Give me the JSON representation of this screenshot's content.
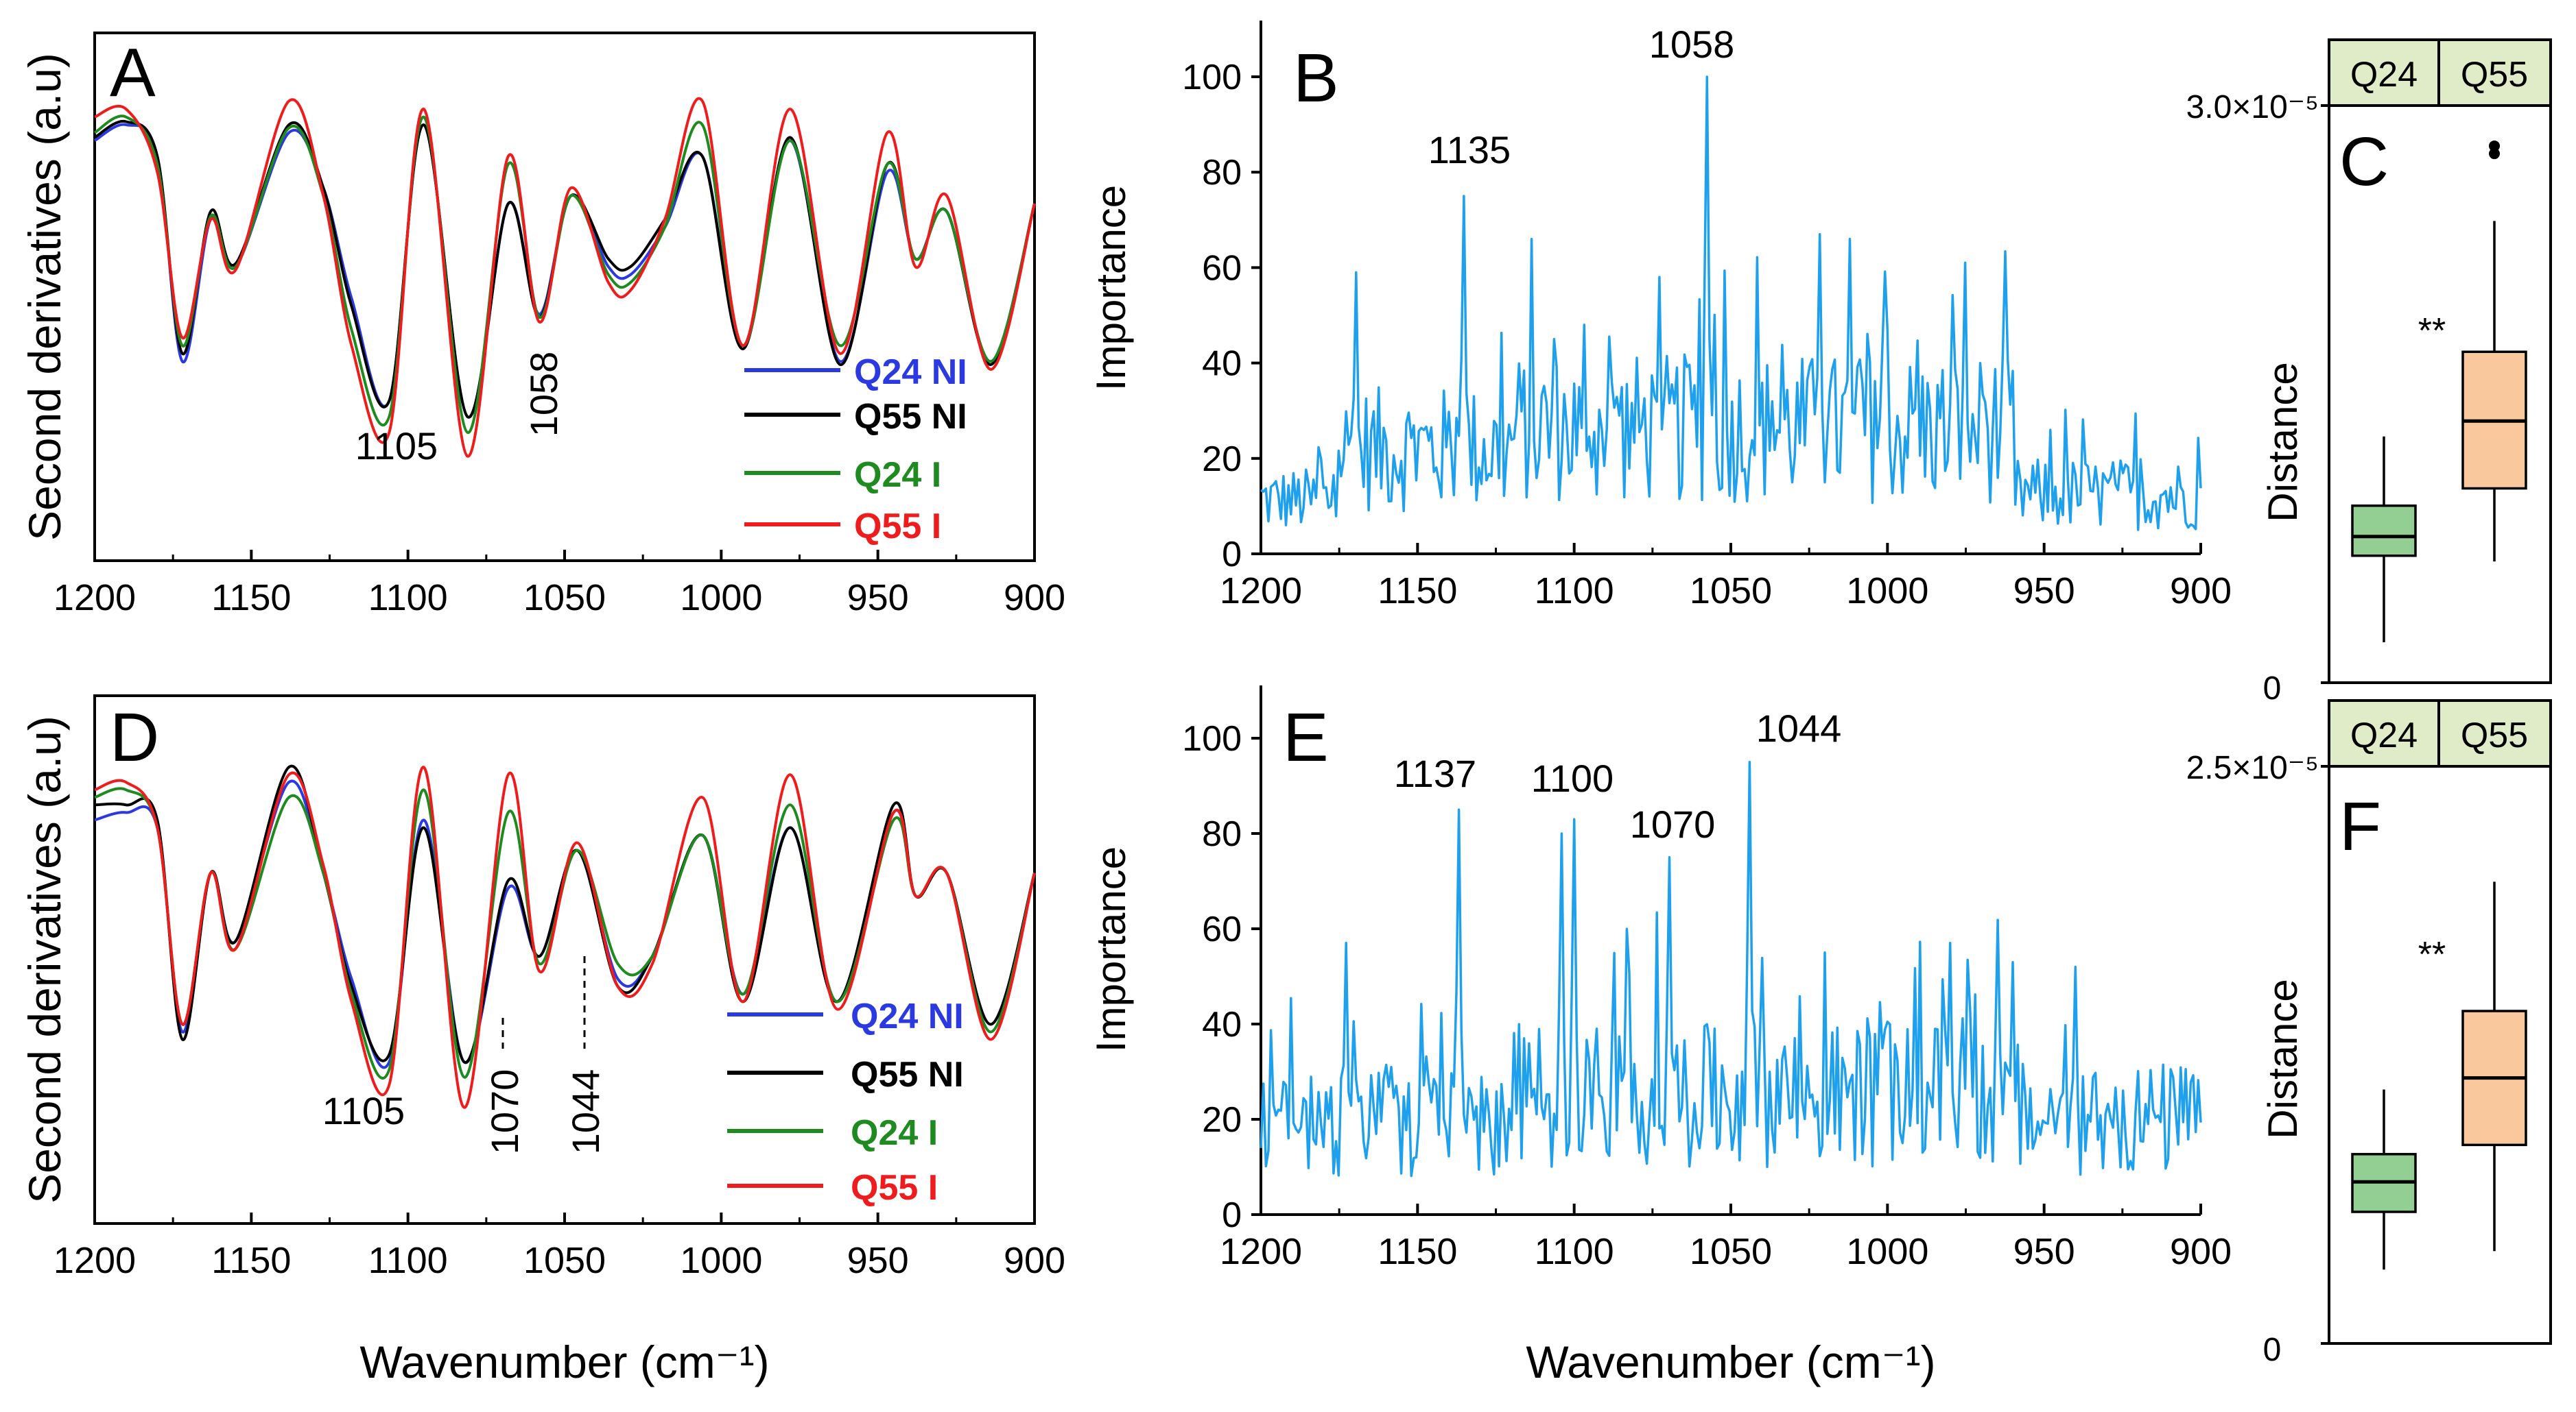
{
  "figure": {
    "panels": [
      {
        "id": "A",
        "letter": "A",
        "type": "line",
        "ylabel": "Second derivatives (a.u)",
        "xlabel": "",
        "xlim": [
          1200,
          900
        ],
        "xticks": [
          1200,
          1150,
          1100,
          1050,
          1000,
          950,
          900
        ],
        "legend": [
          {
            "label": "Q24 NI",
            "color": "#2b39e0"
          },
          {
            "label": "Q55 NI",
            "color": "#000000"
          },
          {
            "label": "Q24 I",
            "color": "#1f8a1f"
          },
          {
            "label": "Q55 I",
            "color": "#ee1c1c"
          }
        ],
        "annotations": [
          {
            "x": 1105,
            "text": "1105"
          },
          {
            "x": 1058,
            "text": "1058"
          }
        ]
      },
      {
        "id": "B",
        "letter": "B",
        "type": "line",
        "ylabel": "Importance",
        "xlabel": "",
        "xlim": [
          1200,
          900
        ],
        "ylim": [
          0,
          110
        ],
        "xticks": [
          1200,
          1150,
          1100,
          1050,
          1000,
          950,
          900
        ],
        "yticks": [
          0,
          20,
          40,
          60,
          80,
          100
        ],
        "series_color": "#1ea0ec",
        "annotations": [
          {
            "x": 1135,
            "y": 75,
            "text": "1135"
          },
          {
            "x": 1058,
            "y": 100,
            "text": "1058"
          }
        ]
      },
      {
        "id": "C",
        "letter": "C",
        "type": "box",
        "ylabel": "Distance",
        "ymax_label": "3.0×10⁻⁵",
        "ymin_label": "0",
        "ylim": [
          0,
          3e-05
        ],
        "categories": [
          "Q24",
          "Q55"
        ],
        "significance": "**",
        "boxes": [
          {
            "name": "Q24",
            "min": 2.1e-06,
            "q1": 6.6e-06,
            "median": 7.6e-06,
            "q3": 9.2e-06,
            "max": 1.28e-05,
            "outliers": [],
            "color": "#93cf93"
          },
          {
            "name": "Q55",
            "min": 6.3e-06,
            "q1": 1.01e-05,
            "median": 1.36e-05,
            "q3": 1.72e-05,
            "max": 2.4e-05,
            "outliers": [
              2.75e-05,
              2.79e-05
            ],
            "color": "#f9c89c"
          }
        ]
      },
      {
        "id": "D",
        "letter": "D",
        "type": "line",
        "ylabel": "Second derivatives (a.u)",
        "xlabel": "Wavenumber (cm⁻¹)",
        "xlim": [
          1200,
          900
        ],
        "xticks": [
          1200,
          1150,
          1100,
          1050,
          1000,
          950,
          900
        ],
        "legend": [
          {
            "label": "Q24 NI",
            "color": "#2b39e0"
          },
          {
            "label": "Q55 NI",
            "color": "#000000"
          },
          {
            "label": "Q24 I",
            "color": "#1f8a1f"
          },
          {
            "label": "Q55 I",
            "color": "#ee1c1c"
          }
        ],
        "annotations": [
          {
            "x": 1105,
            "text": "1105"
          },
          {
            "x": 1070,
            "text": "1070"
          },
          {
            "x": 1044,
            "text": "1044"
          }
        ]
      },
      {
        "id": "E",
        "letter": "E",
        "type": "line",
        "ylabel": "Importance",
        "xlabel": "Wavenumber (cm⁻¹)",
        "xlim": [
          1200,
          900
        ],
        "ylim": [
          0,
          110
        ],
        "xticks": [
          1200,
          1150,
          1100,
          1050,
          1000,
          950,
          900
        ],
        "yticks": [
          0,
          20,
          40,
          60,
          80,
          100
        ],
        "series_color": "#1ea0ec",
        "annotations": [
          {
            "x": 1137,
            "y": 85,
            "text": "1137"
          },
          {
            "x": 1100,
            "y": 83,
            "text": "1100"
          },
          {
            "x": 1070,
            "y": 75,
            "text": "1070"
          },
          {
            "x": 1044,
            "y": 95,
            "text": "1044"
          }
        ]
      },
      {
        "id": "F",
        "letter": "F",
        "type": "box",
        "ylabel": "Distance",
        "ymax_label": "2.5×10⁻⁵",
        "ymin_label": "0",
        "ylim": [
          0,
          2.5e-05
        ],
        "categories": [
          "Q24",
          "Q55"
        ],
        "significance": "**",
        "boxes": [
          {
            "name": "Q24",
            "min": 3.2e-06,
            "q1": 5.7e-06,
            "median": 7e-06,
            "q3": 8.2e-06,
            "max": 1.1e-05,
            "outliers": [],
            "color": "#93cf93"
          },
          {
            "name": "Q55",
            "min": 4e-06,
            "q1": 8.6e-06,
            "median": 1.15e-05,
            "q3": 1.44e-05,
            "max": 2e-05,
            "outliers": [],
            "color": "#f9c89c"
          }
        ]
      }
    ]
  },
  "chart_data": [
    {
      "type": "line",
      "panel": "A",
      "ylabel": "Second derivatives (a.u)",
      "xlim": [
        1200,
        900
      ],
      "x": [
        1200,
        1190,
        1180,
        1172,
        1163,
        1155,
        1138,
        1127,
        1118,
        1106,
        1095,
        1081,
        1068,
        1058,
        1048,
        1036,
        1029,
        1018,
        1006,
        993,
        978,
        962,
        947,
        938,
        928,
        914,
        900
      ],
      "series": [
        {
          "name": "Q24 NI",
          "values": [
            0.7,
            0.8,
            0.6,
            -0.7,
            0.2,
            -0.1,
            0.75,
            0.4,
            -0.3,
            -0.95,
            0.8,
            -1.05,
            0.3,
            -0.4,
            0.35,
            -0.1,
            -0.15,
            0.15,
            0.6,
            -0.6,
            0.7,
            -0.7,
            0.5,
            -0.05,
            0.25,
            -0.7,
            0.3
          ]
        },
        {
          "name": "Q55 NI",
          "values": [
            0.72,
            0.82,
            0.6,
            -0.65,
            0.25,
            -0.08,
            0.8,
            0.4,
            -0.35,
            -0.95,
            0.8,
            -1.05,
            0.3,
            -0.42,
            0.35,
            -0.05,
            -0.1,
            0.2,
            0.6,
            -0.62,
            0.72,
            -0.72,
            0.55,
            -0.05,
            0.25,
            -0.72,
            0.3
          ]
        },
        {
          "name": "Q24 I",
          "values": [
            0.75,
            0.85,
            0.55,
            -0.6,
            0.22,
            -0.1,
            0.78,
            0.35,
            -0.5,
            -1.05,
            0.85,
            -1.15,
            0.55,
            -0.42,
            0.35,
            -0.15,
            -0.2,
            0.15,
            0.8,
            -0.6,
            0.7,
            -0.6,
            0.55,
            -0.05,
            0.25,
            -0.7,
            0.3
          ]
        },
        {
          "name": "Q55 I",
          "values": [
            0.85,
            0.9,
            0.5,
            -0.55,
            0.2,
            -0.12,
            0.95,
            0.35,
            -0.6,
            -1.15,
            0.9,
            -1.3,
            0.6,
            -0.45,
            0.4,
            -0.2,
            -0.25,
            0.2,
            0.95,
            -0.6,
            0.9,
            -0.65,
            0.75,
            -0.1,
            0.35,
            -0.75,
            0.3
          ]
        }
      ]
    },
    {
      "type": "line",
      "panel": "B",
      "ylabel": "Importance",
      "ylim": [
        0,
        110
      ],
      "xlim": [
        1200,
        900
      ],
      "peaks": [
        {
          "x": 1170,
          "y": 59
        },
        {
          "x": 1135,
          "y": 75
        },
        {
          "x": 1097,
          "y": 48
        },
        {
          "x": 1073,
          "y": 58
        },
        {
          "x": 1058,
          "y": 100
        },
        {
          "x": 1022,
          "y": 67
        },
        {
          "x": 1012,
          "y": 66
        },
        {
          "x": 975,
          "y": 61
        }
      ]
    },
    {
      "type": "box",
      "panel": "C",
      "ylabel": "Distance",
      "ylim": [
        0,
        3e-05
      ],
      "categories": [
        "Q24",
        "Q55"
      ]
    },
    {
      "type": "line",
      "panel": "D",
      "ylabel": "Second derivatives (a.u)",
      "xlabel": "Wavenumber (cm⁻¹)",
      "xlim": [
        1200,
        900
      ],
      "x": [
        1200,
        1190,
        1180,
        1172,
        1163,
        1155,
        1138,
        1127,
        1118,
        1106,
        1095,
        1082,
        1068,
        1058,
        1046,
        1033,
        1022,
        1006,
        993,
        978,
        963,
        945,
        938,
        928,
        914,
        900
      ],
      "series": [
        {
          "name": "Q24 NI",
          "values": [
            0.65,
            0.7,
            0.6,
            -0.75,
            0.3,
            -0.15,
            0.9,
            0.3,
            -0.4,
            -0.95,
            0.65,
            -0.95,
            0.2,
            -0.25,
            0.45,
            -0.4,
            -0.25,
            0.55,
            -0.5,
            0.6,
            -0.55,
            0.7,
            0.15,
            0.3,
            -0.7,
            0.3
          ]
        },
        {
          "name": "Q55 NI",
          "values": [
            0.75,
            0.75,
            0.65,
            -0.8,
            0.3,
            -0.15,
            1.0,
            0.3,
            -0.45,
            -0.9,
            0.6,
            -0.95,
            0.25,
            -0.25,
            0.45,
            -0.45,
            -0.25,
            0.55,
            -0.55,
            0.6,
            -0.55,
            0.75,
            0.15,
            0.3,
            -0.7,
            0.3
          ]
        },
        {
          "name": "Q24 I",
          "values": [
            0.8,
            0.85,
            0.6,
            -0.7,
            0.3,
            -0.2,
            0.8,
            0.3,
            -0.5,
            -1.0,
            0.85,
            -1.05,
            0.7,
            -0.3,
            0.45,
            -0.3,
            -0.25,
            0.55,
            -0.5,
            0.75,
            -0.55,
            0.65,
            0.15,
            0.3,
            -0.75,
            0.3
          ]
        },
        {
          "name": "Q55 I",
          "values": [
            0.85,
            0.9,
            0.6,
            -0.7,
            0.3,
            -0.2,
            0.95,
            0.35,
            -0.55,
            -1.1,
            1.0,
            -1.25,
            0.95,
            -0.35,
            0.5,
            -0.45,
            -0.3,
            0.8,
            -0.55,
            0.95,
            -0.6,
            0.7,
            0.15,
            0.3,
            -0.8,
            0.3
          ]
        }
      ]
    },
    {
      "type": "line",
      "panel": "E",
      "ylabel": "Importance",
      "xlabel": "Wavenumber (cm⁻¹)",
      "ylim": [
        0,
        110
      ],
      "xlim": [
        1200,
        900
      ],
      "peaks": [
        {
          "x": 1173,
          "y": 57
        },
        {
          "x": 1137,
          "y": 85
        },
        {
          "x": 1104,
          "y": 80
        },
        {
          "x": 1100,
          "y": 83
        },
        {
          "x": 1070,
          "y": 75
        },
        {
          "x": 1044,
          "y": 95
        },
        {
          "x": 980,
          "y": 57
        },
        {
          "x": 960,
          "y": 53
        },
        {
          "x": 940,
          "y": 52
        }
      ]
    },
    {
      "type": "box",
      "panel": "F",
      "ylabel": "Distance",
      "ylim": [
        0,
        2.5e-05
      ],
      "categories": [
        "Q24",
        "Q55"
      ]
    }
  ]
}
